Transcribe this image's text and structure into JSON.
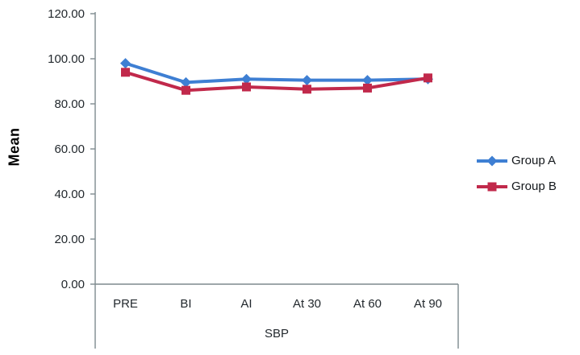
{
  "chart_data": {
    "type": "line",
    "title": "",
    "xlabel": "SBP",
    "ylabel": "Mean",
    "categories": [
      "PRE",
      "BI",
      "AI",
      "At 30",
      "At 60",
      "At 90"
    ],
    "series": [
      {
        "name": "Group A",
        "marker": "diamond",
        "color": "#3e7fd3",
        "values": [
          98,
          89.5,
          91,
          90.5,
          90.5,
          91
        ]
      },
      {
        "name": "Group B",
        "marker": "square",
        "color": "#c1294b",
        "values": [
          94,
          86,
          87.5,
          86.5,
          87,
          91.5
        ]
      }
    ],
    "ylim": [
      0,
      120
    ],
    "y_tick_step": 20,
    "y_tick_labels": [
      "0.00",
      "20.00",
      "40.00",
      "60.00",
      "80.00",
      "100.00",
      "120.00"
    ],
    "grid": false,
    "legend_position": "right",
    "axis_color": "#7e8a8e",
    "tick_text_color": "#23292e"
  }
}
